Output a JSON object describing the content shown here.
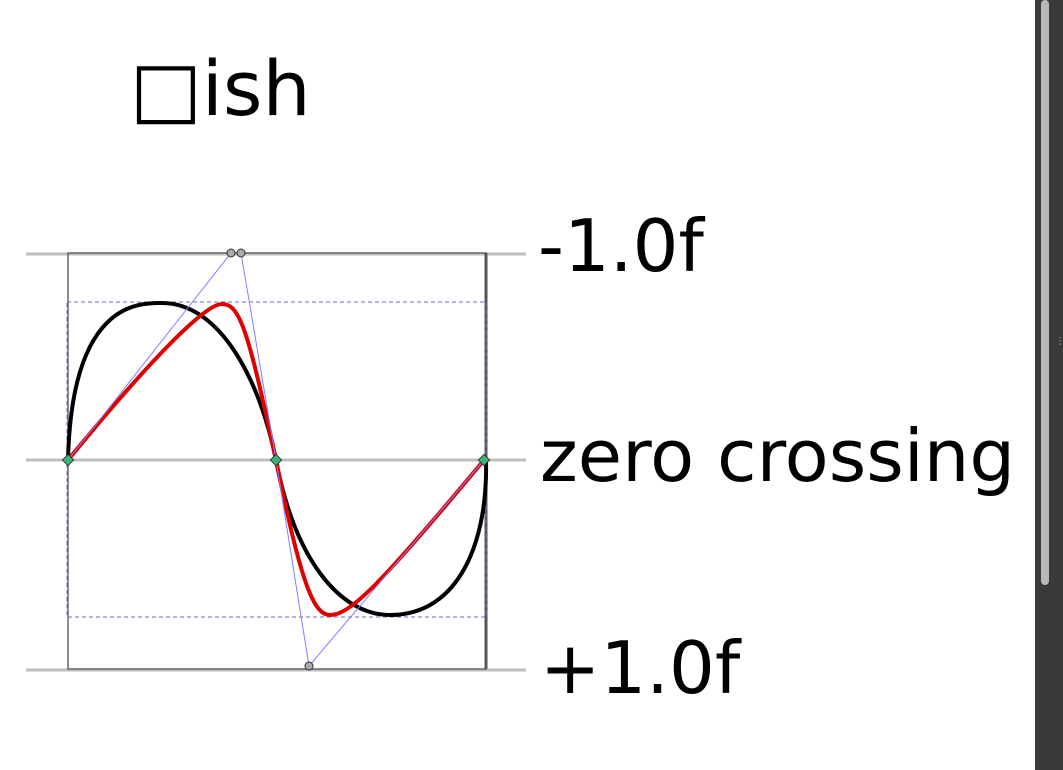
{
  "title": "□ish",
  "levels": {
    "top": "-1.0f",
    "middle": "zero crossing",
    "bottom": "+1.0f"
  },
  "colors": {
    "sine_curve": "#000000",
    "squarish_curve": "#e00000",
    "handle_lines": "#8080ff",
    "guide_lines": "#bebebe",
    "node": "#3cb371"
  },
  "icons": {
    "scroll_grip": "grip-dots-icon"
  }
}
